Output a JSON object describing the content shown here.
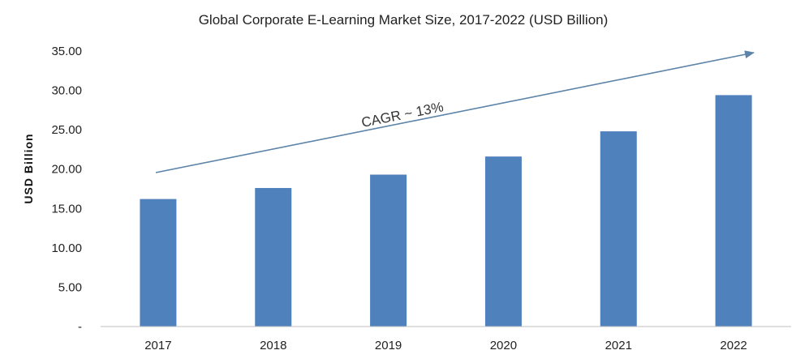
{
  "chart_data": {
    "type": "bar",
    "title": "Global Corporate E-Learning Market Size, 2017-2022 (USD Billion)",
    "xlabel": "",
    "ylabel": "USD  Billion",
    "categories": [
      "2017",
      "2018",
      "2019",
      "2020",
      "2021",
      "2022"
    ],
    "values": [
      16.2,
      17.6,
      19.3,
      21.6,
      24.8,
      29.4
    ],
    "ylim": [
      0,
      35
    ],
    "yticks": [
      {
        "value": 0,
        "label": "-"
      },
      {
        "value": 5,
        "label": "5.00"
      },
      {
        "value": 10,
        "label": "10.00"
      },
      {
        "value": 15,
        "label": "15.00"
      },
      {
        "value": 20,
        "label": "20.00"
      },
      {
        "value": 25,
        "label": "25.00"
      },
      {
        "value": 30,
        "label": "30.00"
      },
      {
        "value": 35,
        "label": "35.00"
      }
    ],
    "grid": false,
    "legend": "none",
    "bar_color": "#4F81BD",
    "arrow_color": "#5B84A8",
    "annotation": "CAGR ~ 13%"
  }
}
